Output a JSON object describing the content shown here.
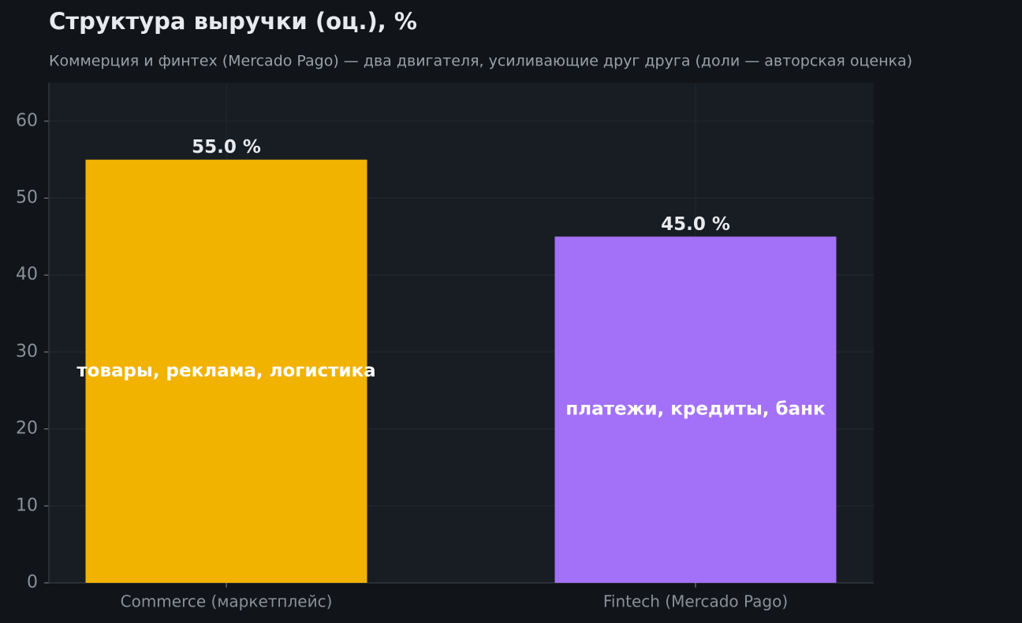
{
  "chart_data": {
    "type": "bar",
    "title": "Структура выручки (оц.), %",
    "subtitle": "Коммерция и финтех (Mercado Pago) — два двигателя, усиливающие друг друга (доли — авторская оценка)",
    "categories": [
      "Commerce (маркетплейс)",
      "Fintech (Mercado Pago)"
    ],
    "values": [
      55.0,
      45.0
    ],
    "value_labels": [
      "55.0 %",
      "45.0 %"
    ],
    "inner_labels": [
      "товары, реклама, логистика",
      "платежи, кредиты, банк"
    ],
    "colors": [
      "#f2b200",
      "#a371f7"
    ],
    "ylim": [
      0,
      65
    ],
    "yticks": [
      0,
      10,
      20,
      30,
      40,
      50,
      60
    ],
    "grid": true
  }
}
